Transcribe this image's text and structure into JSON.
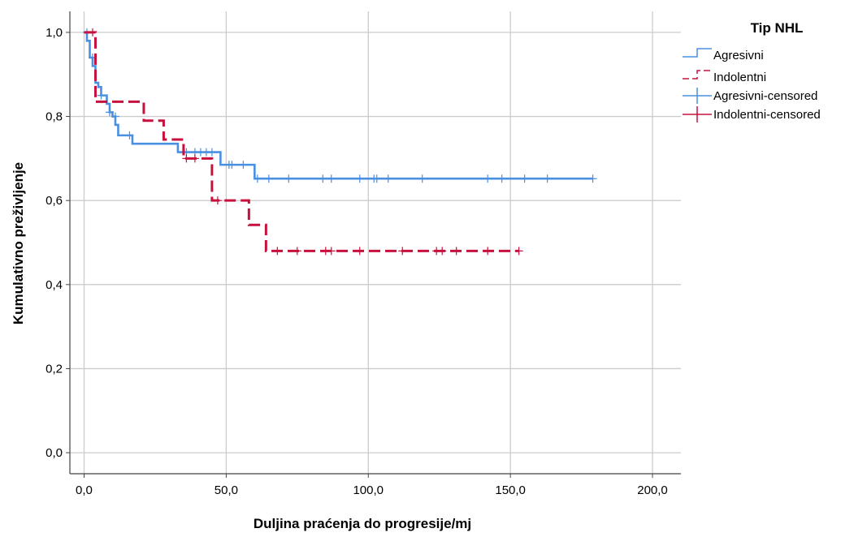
{
  "chart_data": {
    "type": "line",
    "subtype": "kaplan-meier",
    "title": "",
    "xlabel": "Duljina praćenja do progresije/mj",
    "ylabel": "Kumulativno preživljenje",
    "xlim": [
      -5,
      210
    ],
    "ylim": [
      -0.05,
      1.05
    ],
    "x_ticks": [
      0,
      50,
      100,
      150,
      200
    ],
    "x_tick_labels": [
      "0,0",
      "50,0",
      "100,0",
      "150,0",
      "200,0"
    ],
    "y_ticks": [
      0,
      0.2,
      0.4,
      0.6,
      0.8,
      1.0
    ],
    "y_tick_labels": [
      "0,0",
      "0,2",
      "0,4",
      "0,6",
      "0,8",
      "1,0"
    ],
    "grid": true,
    "legend": {
      "title": "Tip NHL",
      "placement": "top-right",
      "entries": [
        "Agresivni",
        "Indolentni",
        "Agresivni-censored",
        "Indolentni-censored"
      ]
    },
    "series": [
      {
        "name": "Agresivni",
        "color": "#4a90e2",
        "dash": "solid",
        "steps": [
          [
            0,
            1.0
          ],
          [
            1,
            0.98
          ],
          [
            2,
            0.94
          ],
          [
            3,
            0.92
          ],
          [
            4,
            0.88
          ],
          [
            5,
            0.87
          ],
          [
            6,
            0.85
          ],
          [
            8,
            0.83
          ],
          [
            9,
            0.81
          ],
          [
            10,
            0.8
          ],
          [
            11,
            0.78
          ],
          [
            12,
            0.755
          ],
          [
            17,
            0.735
          ],
          [
            33,
            0.715
          ],
          [
            48,
            0.685
          ],
          [
            60,
            0.652
          ],
          [
            179,
            0.652
          ]
        ],
        "censored": [
          [
            1,
            1.0
          ],
          [
            3,
            0.94
          ],
          [
            6,
            0.85
          ],
          [
            9,
            0.81
          ],
          [
            11,
            0.8
          ],
          [
            16,
            0.755
          ],
          [
            36,
            0.715
          ],
          [
            39,
            0.715
          ],
          [
            41,
            0.715
          ],
          [
            43,
            0.715
          ],
          [
            45,
            0.715
          ],
          [
            51,
            0.685
          ],
          [
            52,
            0.685
          ],
          [
            56,
            0.685
          ],
          [
            61,
            0.652
          ],
          [
            65,
            0.652
          ],
          [
            72,
            0.652
          ],
          [
            84,
            0.652
          ],
          [
            87,
            0.652
          ],
          [
            97,
            0.652
          ],
          [
            102,
            0.652
          ],
          [
            103,
            0.652
          ],
          [
            107,
            0.652
          ],
          [
            119,
            0.652
          ],
          [
            142,
            0.652
          ],
          [
            147,
            0.652
          ],
          [
            155,
            0.652
          ],
          [
            163,
            0.652
          ],
          [
            179,
            0.652
          ]
        ]
      },
      {
        "name": "Indolentni",
        "color": "#c8103e",
        "dash": "dashed",
        "steps": [
          [
            0,
            1.0
          ],
          [
            3,
            1.0
          ],
          [
            4,
            0.835
          ],
          [
            21,
            0.79
          ],
          [
            28,
            0.745
          ],
          [
            35,
            0.7
          ],
          [
            45,
            0.6
          ],
          [
            58,
            0.542
          ],
          [
            64,
            0.48
          ],
          [
            153,
            0.48
          ]
        ],
        "censored": [
          [
            3,
            1.0
          ],
          [
            36,
            0.7
          ],
          [
            39,
            0.7
          ],
          [
            47,
            0.6
          ],
          [
            68,
            0.48
          ],
          [
            75,
            0.48
          ],
          [
            85,
            0.48
          ],
          [
            87,
            0.48
          ],
          [
            97,
            0.48
          ],
          [
            112,
            0.48
          ],
          [
            124,
            0.48
          ],
          [
            126,
            0.48
          ],
          [
            131,
            0.48
          ],
          [
            142,
            0.48
          ],
          [
            153,
            0.48
          ]
        ]
      }
    ]
  }
}
